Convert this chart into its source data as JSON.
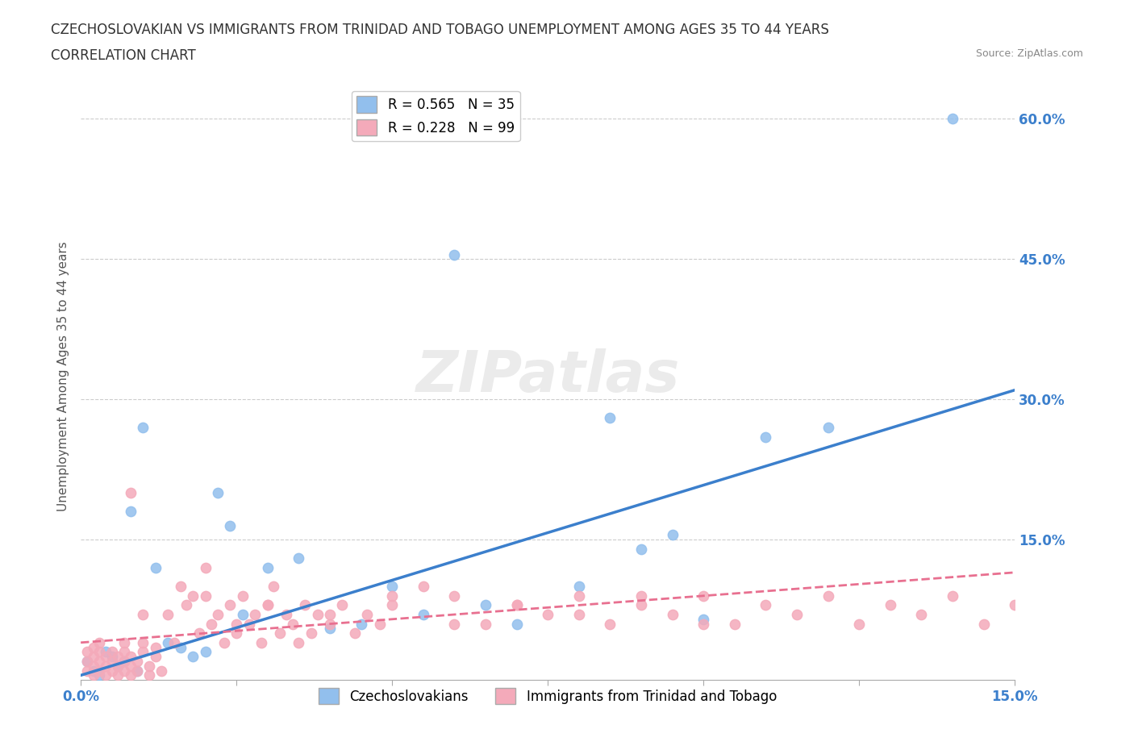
{
  "title_line1": "CZECHOSLOVAKIAN VS IMMIGRANTS FROM TRINIDAD AND TOBAGO UNEMPLOYMENT AMONG AGES 35 TO 44 YEARS",
  "title_line2": "CORRELATION CHART",
  "source_text": "Source: ZipAtlas.com",
  "xlabel": "",
  "ylabel": "Unemployment Among Ages 35 to 44 years",
  "xlim": [
    0.0,
    0.15
  ],
  "ylim": [
    0.0,
    0.65
  ],
  "xtick_labels": [
    "0.0%",
    "15.0%"
  ],
  "ytick_right_labels": [
    "60.0%",
    "45.0%",
    "30.0%",
    "15.0%"
  ],
  "ytick_right_values": [
    0.6,
    0.45,
    0.3,
    0.15
  ],
  "legend_r1": "R = 0.565",
  "legend_n1": "N = 35",
  "legend_r2": "R = 0.228",
  "legend_n2": "N = 99",
  "blue_color": "#92BFED",
  "pink_color": "#F4AABA",
  "blue_line_color": "#3B7FCC",
  "pink_line_color": "#E87090",
  "watermark_text": "ZIPatlas",
  "blue_scatter_x": [
    0.001,
    0.002,
    0.003,
    0.004,
    0.005,
    0.006,
    0.007,
    0.008,
    0.009,
    0.01,
    0.012,
    0.014,
    0.016,
    0.018,
    0.02,
    0.022,
    0.024,
    0.026,
    0.03,
    0.035,
    0.04,
    0.045,
    0.05,
    0.055,
    0.06,
    0.065,
    0.07,
    0.08,
    0.085,
    0.09,
    0.095,
    0.1,
    0.11,
    0.12,
    0.14
  ],
  "blue_scatter_y": [
    0.02,
    0.01,
    0.005,
    0.03,
    0.025,
    0.015,
    0.02,
    0.18,
    0.01,
    0.27,
    0.12,
    0.04,
    0.035,
    0.025,
    0.03,
    0.2,
    0.165,
    0.07,
    0.12,
    0.13,
    0.055,
    0.06,
    0.1,
    0.07,
    0.455,
    0.08,
    0.06,
    0.1,
    0.28,
    0.14,
    0.155,
    0.065,
    0.26,
    0.27,
    0.6
  ],
  "pink_scatter_x": [
    0.001,
    0.001,
    0.001,
    0.002,
    0.002,
    0.002,
    0.002,
    0.003,
    0.003,
    0.003,
    0.003,
    0.004,
    0.004,
    0.004,
    0.005,
    0.005,
    0.005,
    0.006,
    0.006,
    0.006,
    0.007,
    0.007,
    0.007,
    0.007,
    0.008,
    0.008,
    0.008,
    0.008,
    0.009,
    0.009,
    0.01,
    0.01,
    0.011,
    0.011,
    0.012,
    0.012,
    0.013,
    0.014,
    0.015,
    0.016,
    0.017,
    0.018,
    0.019,
    0.02,
    0.021,
    0.022,
    0.023,
    0.024,
    0.025,
    0.026,
    0.027,
    0.028,
    0.029,
    0.03,
    0.031,
    0.032,
    0.033,
    0.034,
    0.035,
    0.036,
    0.037,
    0.038,
    0.04,
    0.042,
    0.044,
    0.046,
    0.048,
    0.05,
    0.055,
    0.06,
    0.065,
    0.07,
    0.075,
    0.08,
    0.085,
    0.09,
    0.095,
    0.1,
    0.105,
    0.11,
    0.115,
    0.12,
    0.125,
    0.13,
    0.135,
    0.14,
    0.145,
    0.15,
    0.01,
    0.02,
    0.025,
    0.03,
    0.04,
    0.05,
    0.06,
    0.07,
    0.08,
    0.09,
    0.1
  ],
  "pink_scatter_y": [
    0.01,
    0.02,
    0.03,
    0.005,
    0.015,
    0.025,
    0.035,
    0.01,
    0.02,
    0.03,
    0.04,
    0.005,
    0.015,
    0.025,
    0.01,
    0.02,
    0.03,
    0.005,
    0.015,
    0.025,
    0.01,
    0.02,
    0.03,
    0.04,
    0.005,
    0.015,
    0.025,
    0.2,
    0.01,
    0.02,
    0.03,
    0.04,
    0.005,
    0.015,
    0.025,
    0.035,
    0.01,
    0.07,
    0.04,
    0.1,
    0.08,
    0.09,
    0.05,
    0.12,
    0.06,
    0.07,
    0.04,
    0.08,
    0.05,
    0.09,
    0.06,
    0.07,
    0.04,
    0.08,
    0.1,
    0.05,
    0.07,
    0.06,
    0.04,
    0.08,
    0.05,
    0.07,
    0.06,
    0.08,
    0.05,
    0.07,
    0.06,
    0.08,
    0.1,
    0.09,
    0.06,
    0.08,
    0.07,
    0.09,
    0.06,
    0.08,
    0.07,
    0.09,
    0.06,
    0.08,
    0.07,
    0.09,
    0.06,
    0.08,
    0.07,
    0.09,
    0.06,
    0.08,
    0.07,
    0.09,
    0.06,
    0.08,
    0.07,
    0.09,
    0.06,
    0.08,
    0.07,
    0.09,
    0.06
  ],
  "blue_trendline_x": [
    0.0,
    0.15
  ],
  "blue_trendline_y": [
    0.005,
    0.31
  ],
  "pink_trendline_x": [
    0.0,
    0.15
  ],
  "pink_trendline_y": [
    0.04,
    0.115
  ]
}
